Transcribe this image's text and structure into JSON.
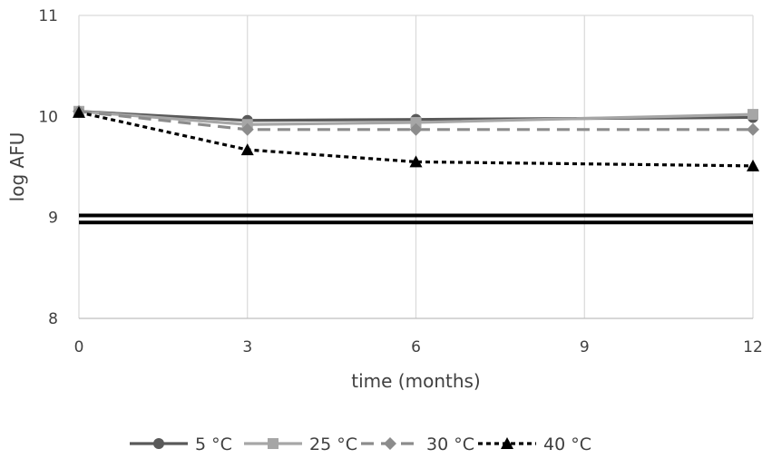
{
  "chart_data": {
    "type": "line",
    "xlabel": "time (months)",
    "ylabel": "log  AFU",
    "xlim": [
      0,
      12
    ],
    "ylim": [
      8,
      11
    ],
    "x_ticks": [
      "0",
      "3",
      "6",
      "9",
      "12"
    ],
    "y_ticks": [
      "8",
      "9",
      "10",
      "11"
    ],
    "grid": {
      "vertical": true,
      "horizontal": false
    },
    "legend_position": "bottom",
    "series": [
      {
        "name": "5 °C",
        "x": [
          0,
          3,
          6,
          12
        ],
        "values": [
          10.05,
          9.96,
          9.97,
          9.99
        ],
        "color": "#595959",
        "dash": "solid",
        "marker": "circle"
      },
      {
        "name": "25 °C",
        "x": [
          0,
          3,
          6,
          12
        ],
        "values": [
          10.05,
          9.92,
          9.94,
          10.02
        ],
        "color": "#a6a6a6",
        "dash": "solid",
        "marker": "square"
      },
      {
        "name": "30 °C",
        "x": [
          0,
          3,
          6,
          12
        ],
        "values": [
          10.05,
          9.87,
          9.87,
          9.87
        ],
        "color": "#8c8c8c",
        "dash": "dashed",
        "marker": "diamond"
      },
      {
        "name": "40 °C",
        "x": [
          0,
          3,
          6,
          12
        ],
        "values": [
          10.04,
          9.67,
          9.55,
          9.51
        ],
        "color": "#000000",
        "dash": "dotted",
        "marker": "triangle"
      }
    ],
    "reference_lines": [
      {
        "y": 9.02,
        "color": "#000000"
      },
      {
        "y": 8.95,
        "color": "#000000"
      }
    ]
  }
}
